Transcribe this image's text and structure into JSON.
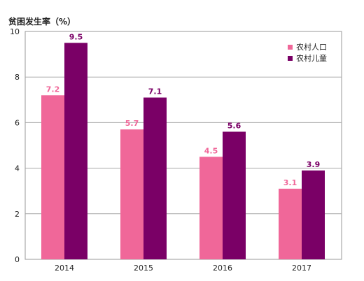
{
  "chart_data": {
    "type": "bar",
    "ylabel": "贫困发生率（%）",
    "categories": [
      "2014",
      "2015",
      "2016",
      "2017"
    ],
    "series": [
      {
        "name": "农村人口",
        "values": [
          7.2,
          5.7,
          4.5,
          3.1
        ],
        "color": "#f06799"
      },
      {
        "name": "农村儿童",
        "values": [
          9.5,
          7.1,
          5.6,
          3.9
        ],
        "color": "#7a0066"
      }
    ],
    "ylim": [
      0,
      10
    ],
    "yticks": [
      0,
      2,
      4,
      6,
      8,
      10
    ],
    "grid": true,
    "legend_position": "top-right"
  }
}
